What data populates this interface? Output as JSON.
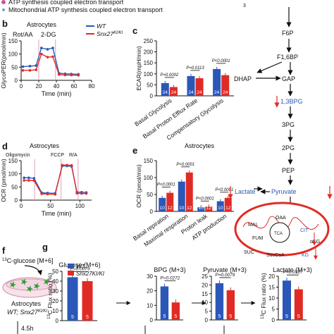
{
  "colors": {
    "wt": "#2b57b8",
    "ko": "#e02b25",
    "pink": "#e0b0c8",
    "mito": "#e02b25"
  },
  "top_legend": [
    {
      "label": "ATP synthesis coupled electron transport",
      "color": "#d050a0"
    },
    {
      "label": "Mitochondrial ATP synthesis coupled electron transport",
      "color": "#6aa0d0"
    },
    {
      "label": "3"
    }
  ],
  "panels": {
    "b": {
      "letter": "b",
      "title": "Astrocytes",
      "treat1": "Rot/AA",
      "treat2": "2-DG",
      "ylabel": "GlycoPER(pmol/min)",
      "xlabel": "Time (min)",
      "legend": [
        "WT",
        "Snx27KI/KI"
      ],
      "legend_ko_base": "Snx27",
      "legend_ko_sup": "KI/KI"
    },
    "c": {
      "letter": "c",
      "ylabel": "ECAR(mpH/min)"
    },
    "d": {
      "letter": "d",
      "title": "Astrocytes",
      "treat1": "Oligomycin",
      "treat2": "FCCP",
      "treat3": "R/A",
      "ylabel": "OCR (pmol/min)",
      "xlabel": "Time (min)"
    },
    "e": {
      "letter": "e",
      "title": "Astrocytes",
      "ylabel": "OCR (pmol/min)"
    },
    "f": {
      "letter": "f",
      "tracer_sup": "13",
      "tracer": "C-glucose [M+6]",
      "cell": "Astrocytes",
      "genotype": "WT; Snx27",
      "genotype_sup": "KI/KI",
      "time": "4.5h"
    },
    "g": {
      "letter": "g",
      "ylabel_sup": "13",
      "ylabel": "C Flux ratio (%)"
    }
  },
  "pathway": {
    "F6P": "F6P",
    "F16BP": "F1,6BP",
    "DHAP": "DHAP",
    "GAP": "GAP",
    "BPG": "1,3BPG",
    "PG3": "3PG",
    "PG2": "2PG",
    "PEP": "PEP",
    "Lactate": "Lactate",
    "Pyruvate": "Pyruvate",
    "OAA": "OAA",
    "MAL": "MAL",
    "TCA": "TCA",
    "CIT": "CIT",
    "FUM": "FUM",
    "aKG": "αKG",
    "SUC": "SUC",
    "SucCoA": "SucCoA",
    "KG": "KG"
  },
  "chart_data": [
    {
      "panel": "b",
      "type": "line",
      "title": "Astrocytes",
      "xlabel": "Time (min)",
      "ylabel": "GlycoPER(pmol/min)",
      "xlim": [
        0,
        80
      ],
      "ylim": [
        0,
        150
      ],
      "xticks": [
        0,
        20,
        40,
        60,
        80
      ],
      "yticks": [
        0,
        50,
        100,
        150
      ],
      "x": [
        2,
        10,
        17,
        23,
        30,
        36,
        43,
        50,
        57,
        65
      ],
      "series": [
        {
          "name": "WT",
          "values": [
            52,
            54,
            56,
            123,
            118,
            123,
            27,
            25,
            24,
            23
          ]
        },
        {
          "name": "Snx27KI/KI",
          "values": [
            38,
            38,
            40,
            100,
            88,
            90,
            22,
            20,
            20,
            19
          ]
        }
      ]
    },
    {
      "panel": "c",
      "type": "bar",
      "ylabel": "ECAR(mpH/min)",
      "ylim": [
        0,
        250
      ],
      "yticks": [
        0,
        50,
        100,
        150,
        200,
        250
      ],
      "categories": [
        "Basal Glycolysis",
        "Basal Proton Efflux Rate",
        "Compensatory Glycolysis"
      ],
      "series": [
        {
          "name": "WT",
          "values": [
            58,
            90,
            122
          ],
          "n": [
            24,
            24,
            24
          ]
        },
        {
          "name": "Snx27KI/KI",
          "values": [
            40,
            80,
            94
          ],
          "n": [
            24,
            24,
            24
          ]
        }
      ],
      "annotations": [
        "P=0.0002",
        "P=0.0113",
        "P<0.0001"
      ]
    },
    {
      "panel": "d",
      "type": "line",
      "title": "Astrocytes",
      "xlabel": "Time (min)",
      "ylabel": "OCR (pmol/min)",
      "xlim": [
        0,
        120
      ],
      "ylim": [
        0,
        150
      ],
      "xticks": [
        0,
        50,
        100
      ],
      "yticks": [
        0,
        50,
        100,
        150
      ],
      "x": [
        5,
        13,
        22,
        35,
        45,
        58,
        70,
        78,
        86,
        95,
        103,
        111
      ],
      "series": [
        {
          "name": "WT",
          "values": [
            85,
            85,
            83,
            28,
            27,
            26,
            130,
            130,
            128,
            30,
            30,
            29
          ]
        },
        {
          "name": "Snx27KI/KI",
          "values": [
            75,
            75,
            74,
            24,
            23,
            22,
            133,
            133,
            132,
            26,
            25,
            25
          ]
        }
      ]
    },
    {
      "panel": "e",
      "type": "bar",
      "title": "Astrocytes",
      "ylabel": "OCR (pmol/min)",
      "ylim": [
        0,
        150
      ],
      "yticks": [
        0,
        50,
        100,
        150
      ],
      "categories": [
        "Basal repiration",
        "Maximal respiration",
        "Proton leak",
        "ATP production"
      ],
      "series": [
        {
          "name": "WT",
          "values": [
            40,
            88,
            12,
            30
          ],
          "n": [
            10,
            10,
            10,
            10
          ]
        },
        {
          "name": "Snx27KI/KI",
          "values": [
            55,
            115,
            14,
            40
          ],
          "n": [
            12,
            12,
            12,
            12
          ]
        }
      ],
      "annotations": [
        "P<0.0001",
        "P<0.0001",
        "P<0.0001",
        "P<0.0001"
      ]
    },
    {
      "panel": "g1",
      "type": "bar",
      "title": "Glucose (M+6)",
      "ylim": [
        0,
        50
      ],
      "yticks": [
        0,
        10,
        20,
        30,
        40,
        50
      ],
      "categories": [
        "WT",
        "Snx27KI/KI"
      ],
      "values": [
        44,
        40
      ],
      "n": [
        5,
        5
      ],
      "annotation": "P=0.0079",
      "legend": [
        "WT",
        "Snx27KI/KI"
      ]
    },
    {
      "panel": "g2",
      "type": "bar",
      "title": "BPG (M+3)",
      "ylim": [
        0,
        30
      ],
      "yticks": [
        0,
        10,
        20,
        30
      ],
      "categories": [
        "WT",
        "Snx27KI/KI"
      ],
      "values": [
        23,
        12
      ],
      "n": [
        5,
        5
      ],
      "annotation": "P=0.0272"
    },
    {
      "panel": "g3",
      "type": "bar",
      "title": "Pyruvate (M+3)",
      "ylim": [
        0,
        25
      ],
      "yticks": [
        0,
        5,
        10,
        15,
        20,
        25
      ],
      "categories": [
        "WT",
        "Snx27KI/KI"
      ],
      "values": [
        21,
        17
      ],
      "n": [
        5,
        5
      ],
      "annotation": "P=0.0079"
    },
    {
      "panel": "g4",
      "type": "bar",
      "title": "Lactate (M+3)",
      "ylim": [
        0,
        20
      ],
      "yticks": [
        0,
        5,
        10,
        15,
        20
      ],
      "categories": [
        "WT",
        "Snx27KI/KI"
      ],
      "values": [
        18,
        14
      ],
      "n": [
        5,
        5
      ],
      "annotation": "P=0.0317",
      "ylabel_sup": "13",
      "ylabel": "C Flux ratio (%)"
    }
  ]
}
